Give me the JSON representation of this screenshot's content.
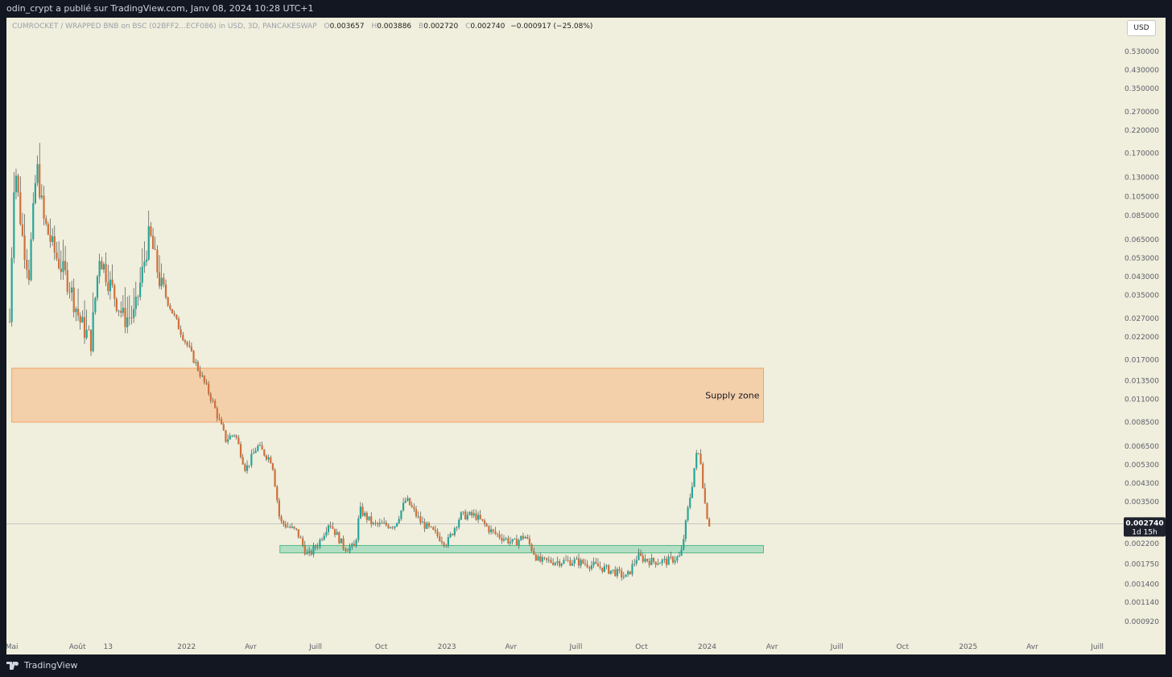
{
  "header": {
    "publisher_text": "odin_crypt a publié sur TradingView.com, Janv 08, 2024 10:28 UTC+1"
  },
  "legend": {
    "symbol": "CUMROCKET / WRAPPED BNB on BSC (02BFF2...ECF086) in USD, 3D, PANCAKESWAP",
    "o_label": "O",
    "o_value": "0.003657",
    "h_label": "H",
    "h_value": "0.003886",
    "b_label": "B",
    "b_value": "0.002720",
    "c_label": "C",
    "c_value": "0.002740",
    "change": "−0.000917 (−25.08%)"
  },
  "currency_badge": "USD",
  "footer": {
    "brand": "TradingView"
  },
  "colors": {
    "background": "#f0eedc",
    "up": "#26a69a",
    "down": "#d0703a",
    "supply_fill": "#f5cfa8",
    "supply_border": "#f0a060",
    "demand_fill": "#a8dcc0",
    "demand_border": "#3bb27a"
  },
  "chart_data": {
    "type": "candlestick",
    "title": "CUMROCKET / WRAPPED BNB on BSC (02BFF2...ECF086) in USD, 3D, PANCAKESWAP",
    "y_scale": "log",
    "ylim": [
      0.00085,
      0.6
    ],
    "y_ticks": [
      "0.530000",
      "0.430000",
      "0.350000",
      "0.270000",
      "0.220000",
      "0.170000",
      "0.130000",
      "0.105000",
      "0.085000",
      "0.065000",
      "0.053000",
      "0.043000",
      "0.035000",
      "0.027000",
      "0.022000",
      "0.017000",
      "0.013500",
      "0.011000",
      "0.008500",
      "0.006500",
      "0.005300",
      "0.004300",
      "0.003500",
      "0.002200",
      "0.001750",
      "0.001400",
      "0.001140",
      "0.000920"
    ],
    "x_ticks": [
      "Mai",
      "Août",
      "13",
      "2022",
      "Avr",
      "Juill",
      "Oct",
      "2023",
      "Avr",
      "Juill",
      "Oct",
      "2024",
      "Avr",
      "Juill",
      "Oct",
      "2025",
      "Avr",
      "Juill"
    ],
    "x_tick_dates": [
      "2021-05-01",
      "2021-08-01",
      "2021-09-13",
      "2022-01-01",
      "2022-04-01",
      "2022-07-01",
      "2022-10-01",
      "2023-01-01",
      "2023-04-01",
      "2023-07-01",
      "2023-10-01",
      "2024-01-01",
      "2024-04-01",
      "2024-07-01",
      "2024-10-01",
      "2025-01-01",
      "2025-04-01",
      "2025-07-01"
    ],
    "last_price": {
      "value": 0.00274,
      "label": "0.002740",
      "countdown": "1d 15h"
    },
    "zones": [
      {
        "name": "Supply zone",
        "label": "Supply zone",
        "from": 0.0085,
        "to": 0.0155,
        "start": "2021-05-01",
        "end": "2024-03-20"
      },
      {
        "name": "Demand zone",
        "label": "",
        "from": 0.00198,
        "to": 0.00215,
        "start": "2022-05-12",
        "end": "2024-03-20"
      }
    ],
    "price_path": [
      [
        "2021-04-28",
        0.026
      ],
      [
        "2021-05-05",
        0.16
      ],
      [
        "2021-05-15",
        0.07
      ],
      [
        "2021-05-25",
        0.045
      ],
      [
        "2021-06-05",
        0.15
      ],
      [
        "2021-06-15",
        0.08
      ],
      [
        "2021-07-01",
        0.055
      ],
      [
        "2021-07-20",
        0.04
      ],
      [
        "2021-08-05",
        0.026
      ],
      [
        "2021-08-20",
        0.021
      ],
      [
        "2021-09-01",
        0.055
      ],
      [
        "2021-09-15",
        0.04
      ],
      [
        "2021-10-05",
        0.027
      ],
      [
        "2021-10-20",
        0.028
      ],
      [
        "2021-11-10",
        0.07
      ],
      [
        "2021-11-25",
        0.04
      ],
      [
        "2021-12-20",
        0.025
      ],
      [
        "2022-01-15",
        0.016
      ],
      [
        "2022-02-05",
        0.011
      ],
      [
        "2022-02-25",
        0.007
      ],
      [
        "2022-03-10",
        0.0075
      ],
      [
        "2022-03-25",
        0.005
      ],
      [
        "2022-04-10",
        0.0065
      ],
      [
        "2022-05-01",
        0.0055
      ],
      [
        "2022-05-12",
        0.0028
      ],
      [
        "2022-06-05",
        0.0025
      ],
      [
        "2022-06-20",
        0.0019
      ],
      [
        "2022-07-05",
        0.0022
      ],
      [
        "2022-07-20",
        0.0028
      ],
      [
        "2022-08-10",
        0.0021
      ],
      [
        "2022-08-25",
        0.0021
      ],
      [
        "2022-09-01",
        0.0032
      ],
      [
        "2022-09-20",
        0.0027
      ],
      [
        "2022-10-20",
        0.0027
      ],
      [
        "2022-11-05",
        0.0036
      ],
      [
        "2022-11-25",
        0.0028
      ],
      [
        "2023-01-01",
        0.0022
      ],
      [
        "2023-01-20",
        0.003
      ],
      [
        "2023-02-10",
        0.003
      ],
      [
        "2023-03-05",
        0.0025
      ],
      [
        "2023-04-05",
        0.0022
      ],
      [
        "2023-04-20",
        0.0024
      ],
      [
        "2023-05-10",
        0.0018
      ],
      [
        "2023-06-01",
        0.0018
      ],
      [
        "2023-07-01",
        0.0018
      ],
      [
        "2023-08-01",
        0.0017
      ],
      [
        "2023-08-25",
        0.0016
      ],
      [
        "2023-09-10",
        0.0015
      ],
      [
        "2023-09-25",
        0.0019
      ],
      [
        "2023-10-15",
        0.0018
      ],
      [
        "2023-11-05",
        0.0018
      ],
      [
        "2023-11-25",
        0.0019
      ],
      [
        "2023-12-05",
        0.0032
      ],
      [
        "2023-12-12",
        0.0045
      ],
      [
        "2023-12-16",
        0.0058
      ],
      [
        "2023-12-22",
        0.006
      ],
      [
        "2023-12-28",
        0.0036
      ],
      [
        "2024-01-03",
        0.00274
      ]
    ]
  }
}
